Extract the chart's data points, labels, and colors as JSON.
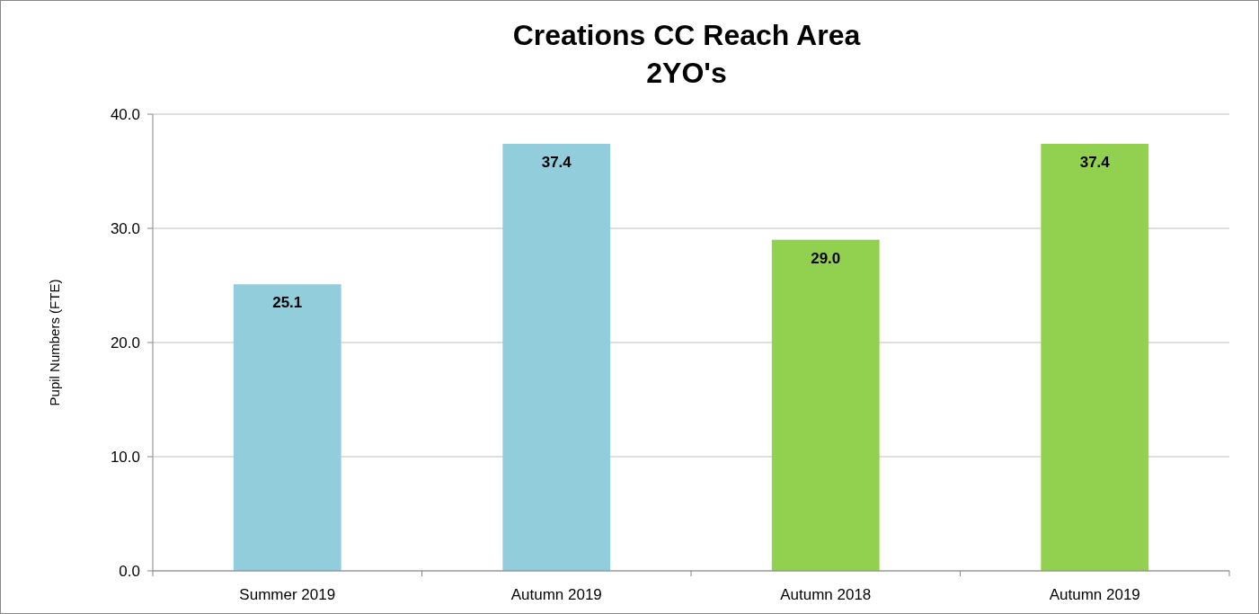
{
  "chart_data": {
    "type": "bar",
    "title": "Creations CC Reach Area\n2YO's",
    "ylabel": "Pupil Numbers (FTE)",
    "categories": [
      "Summer 2019",
      "Autumn 2019",
      "Autumn 2018",
      "Autumn 2019"
    ],
    "values": [
      25.1,
      37.4,
      29.0,
      37.4
    ],
    "colors": [
      "#92cddc",
      "#92cddc",
      "#92d050",
      "#92d050"
    ],
    "ylim": [
      0,
      40
    ],
    "yticks": [
      {
        "value": 0,
        "label": "0.0"
      },
      {
        "value": 10,
        "label": "10.0"
      },
      {
        "value": 20,
        "label": "20.0"
      },
      {
        "value": 30,
        "label": "30.0"
      },
      {
        "value": 40,
        "label": "40.0"
      }
    ],
    "value_labels": [
      "25.1",
      "37.4",
      "29.0",
      "37.4"
    ],
    "grid": "y"
  }
}
